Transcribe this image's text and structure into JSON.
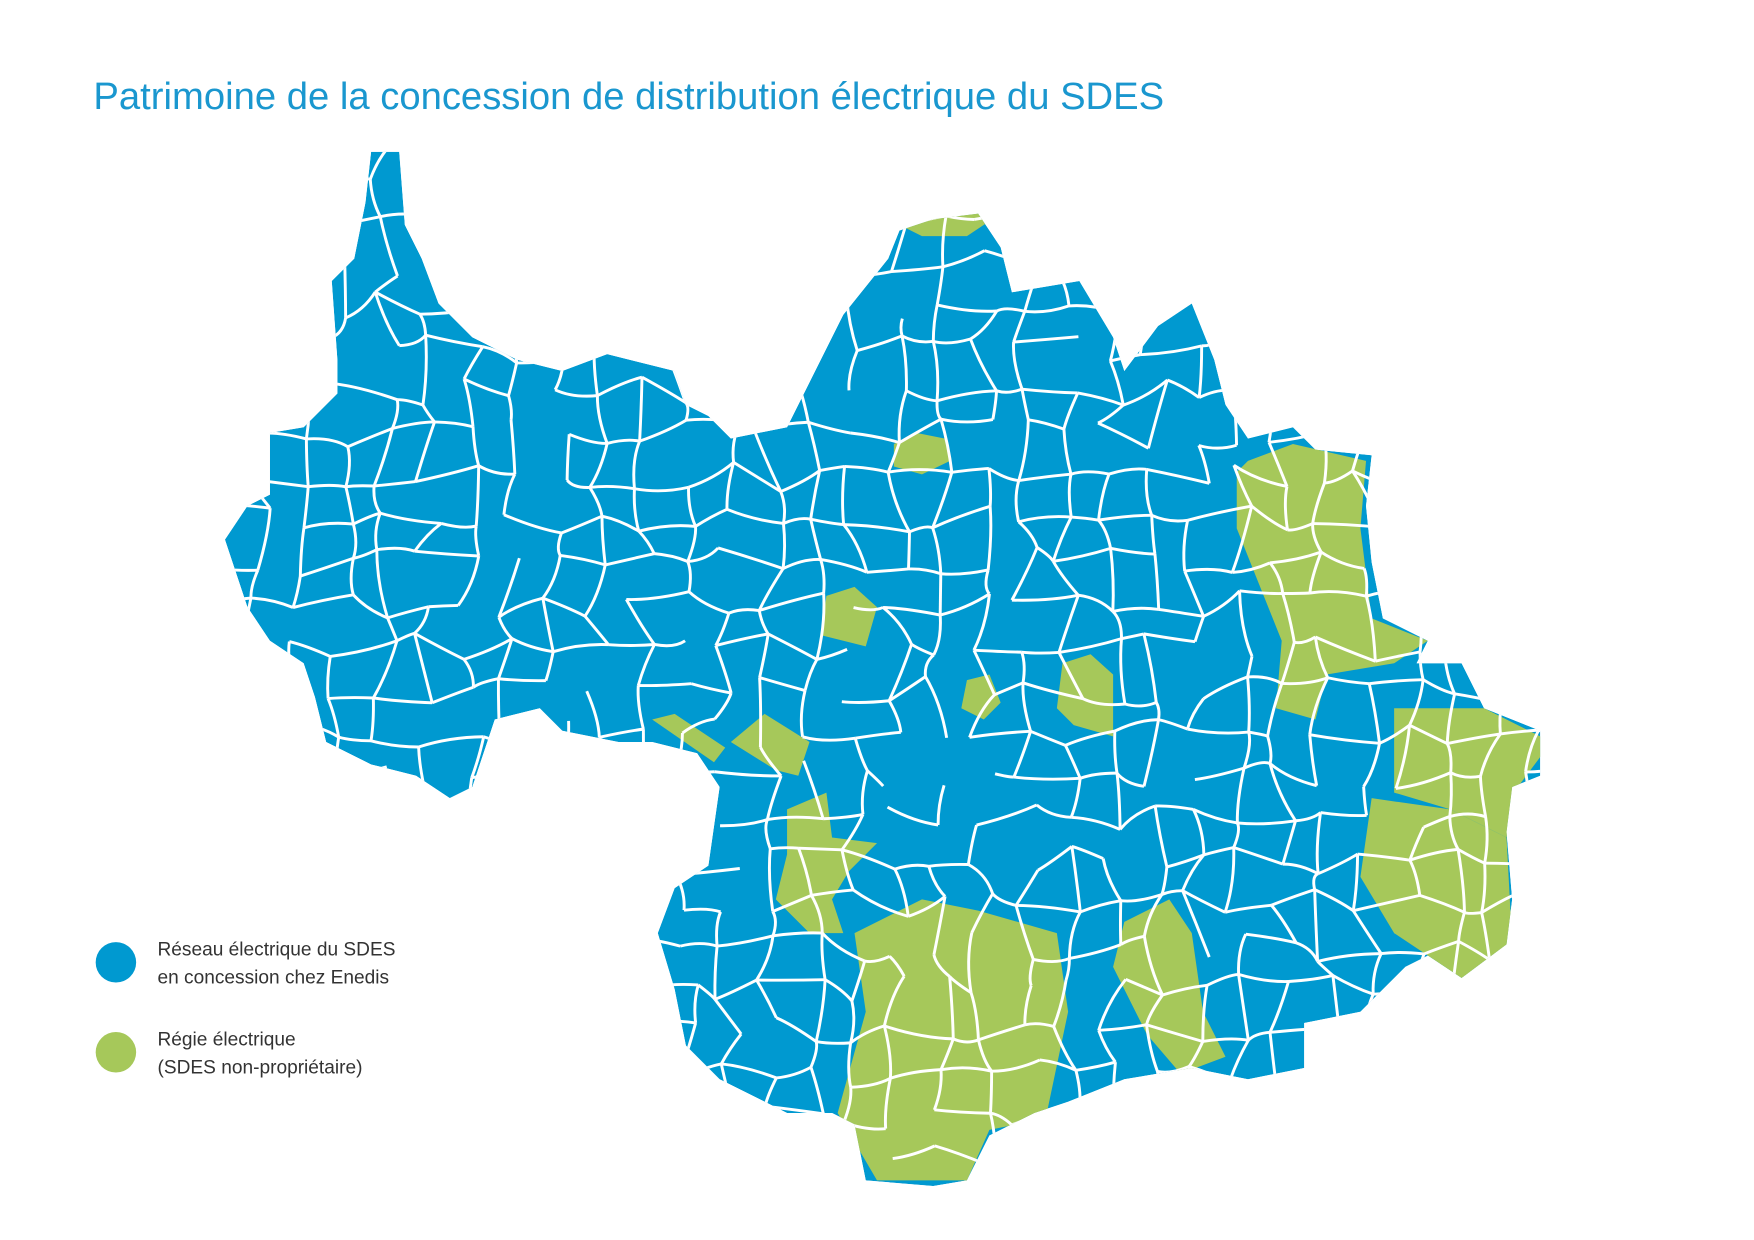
{
  "title": "Patrimoine de la concession de distribution électrique du SDES",
  "legend": [
    {
      "label": [
        "Réseau électrique du SDES",
        "en concession chez Enedis"
      ],
      "color": "#0099d0"
    },
    {
      "label": [
        "Régie électrique",
        "(SDES non-propriétaire)"
      ],
      "color": "#a6c85a"
    }
  ]
}
